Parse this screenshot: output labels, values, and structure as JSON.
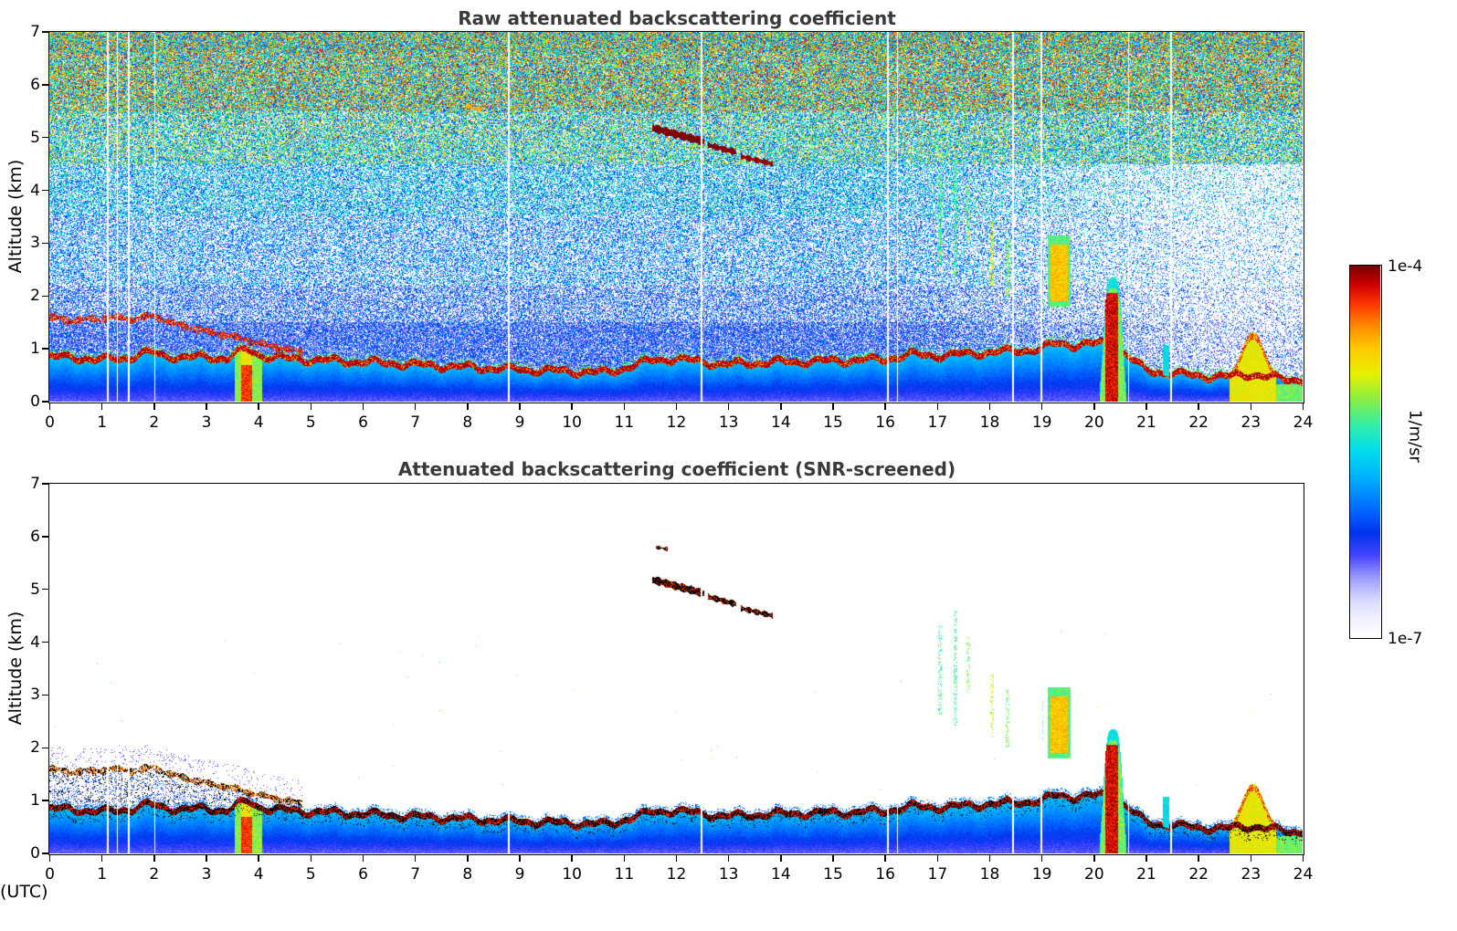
{
  "figure": {
    "background": "#ffffff"
  },
  "chart_data": {
    "type": "heatmap",
    "value_scale": "log",
    "panels": [
      {
        "id": "raw",
        "title": "Raw attenuated backscattering coefficient",
        "noise": true,
        "seed": 42
      },
      {
        "id": "screened",
        "title": "Attenuated backscattering coefficient (SNR-screened)",
        "noise": false,
        "seed": 1337
      }
    ],
    "shared": {
      "xlabel": "Time (UTC)",
      "ylabel": "Altitude (km)",
      "xlim": [
        0,
        24
      ],
      "ylim": [
        0,
        7
      ],
      "x_ticks": [
        0,
        1,
        2,
        3,
        4,
        5,
        6,
        7,
        8,
        9,
        10,
        11,
        12,
        13,
        14,
        15,
        16,
        17,
        18,
        19,
        20,
        21,
        22,
        23,
        24
      ],
      "y_ticks": [
        0,
        1,
        2,
        3,
        4,
        5,
        6,
        7
      ],
      "colorbar": {
        "max_label": "1e-4",
        "min_label": "1e-7",
        "units": "1/m/sr"
      },
      "colormap": [
        [
          0.0,
          "#ffffff"
        ],
        [
          0.05,
          "#f0f0ff"
        ],
        [
          0.1,
          "#d8d8ff"
        ],
        [
          0.16,
          "#9a9aff"
        ],
        [
          0.22,
          "#4444ff"
        ],
        [
          0.28,
          "#0033ee"
        ],
        [
          0.34,
          "#0066ff"
        ],
        [
          0.42,
          "#00aaff"
        ],
        [
          0.5,
          "#00ddee"
        ],
        [
          0.57,
          "#33eeaa"
        ],
        [
          0.64,
          "#88ee44"
        ],
        [
          0.71,
          "#e8f000"
        ],
        [
          0.78,
          "#ffc800"
        ],
        [
          0.84,
          "#ff8800"
        ],
        [
          0.9,
          "#ff3300"
        ],
        [
          0.95,
          "#cc0000"
        ],
        [
          1.0,
          "#780000"
        ]
      ],
      "features": {
        "boundary_layer_top_km": [
          [
            0,
            0.88
          ],
          [
            0.5,
            0.86
          ],
          [
            1,
            0.82
          ],
          [
            1.5,
            0.86
          ],
          [
            1.9,
            0.96
          ],
          [
            2.2,
            0.9
          ],
          [
            2.6,
            0.86
          ],
          [
            3.0,
            0.88
          ],
          [
            3.4,
            0.84
          ],
          [
            3.6,
            0.95
          ],
          [
            3.8,
            1.02
          ],
          [
            4.0,
            0.92
          ],
          [
            4.3,
            0.86
          ],
          [
            5,
            0.82
          ],
          [
            6,
            0.78
          ],
          [
            7,
            0.73
          ],
          [
            8,
            0.68
          ],
          [
            9,
            0.64
          ],
          [
            10,
            0.6
          ],
          [
            10.7,
            0.58
          ],
          [
            11.2,
            0.72
          ],
          [
            11.6,
            0.82
          ],
          [
            12,
            0.84
          ],
          [
            12.5,
            0.78
          ],
          [
            13,
            0.73
          ],
          [
            13.5,
            0.76
          ],
          [
            14,
            0.78
          ],
          [
            15,
            0.8
          ],
          [
            16,
            0.83
          ],
          [
            16.5,
            0.92
          ],
          [
            17,
            0.9
          ],
          [
            17.5,
            0.93
          ],
          [
            18,
            0.96
          ],
          [
            18.5,
            0.99
          ],
          [
            19,
            1.03
          ],
          [
            19.3,
            1.14
          ],
          [
            19.6,
            1.1
          ],
          [
            20,
            1.12
          ],
          [
            20.35,
            1.15
          ],
          [
            20.7,
            0.85
          ],
          [
            21,
            0.62
          ],
          [
            21.5,
            0.56
          ],
          [
            22,
            0.52
          ],
          [
            22.5,
            0.5
          ],
          [
            23,
            0.55
          ],
          [
            23.3,
            0.5
          ],
          [
            23.6,
            0.46
          ],
          [
            24,
            0.44
          ]
        ],
        "elevated_aerosol_layer_km": [
          [
            0,
            1.6
          ],
          [
            0.4,
            1.53
          ],
          [
            0.8,
            1.56
          ],
          [
            1.2,
            1.6
          ],
          [
            1.6,
            1.56
          ],
          [
            2.0,
            1.63
          ],
          [
            2.3,
            1.5
          ],
          [
            2.6,
            1.43
          ],
          [
            3.0,
            1.33
          ],
          [
            3.4,
            1.26
          ],
          [
            3.8,
            1.16
          ],
          [
            4.2,
            1.06
          ],
          [
            4.6,
            0.99
          ],
          [
            4.85,
            0.93
          ]
        ],
        "cloud_streaks": [
          {
            "t0": 11.55,
            "t1": 12.55,
            "z0": 5.18,
            "z1": 4.92,
            "th": 0.14,
            "v": 0.98
          },
          {
            "t0": 12.62,
            "t1": 13.15,
            "z0": 4.86,
            "z1": 4.72,
            "th": 0.1,
            "v": 0.97
          },
          {
            "t0": 13.25,
            "t1": 13.85,
            "z0": 4.64,
            "z1": 4.5,
            "th": 0.09,
            "v": 0.96
          },
          {
            "t0": 8.0,
            "t1": 8.3,
            "z0": 5.6,
            "z1": 5.52,
            "th": 0.06,
            "v": 0.78,
            "panel": "raw"
          },
          {
            "t0": 11.62,
            "t1": 11.85,
            "z0": 5.8,
            "z1": 5.76,
            "th": 0.05,
            "v": 0.92,
            "panel": "screened"
          }
        ],
        "precip_plume": {
          "t0": 3.55,
          "t1": 4.08,
          "t_core": 3.78,
          "v_core": 0.85,
          "v_edge": 0.58
        },
        "virga_columns": [
          {
            "t": 17.05,
            "z0": 2.6,
            "z1": 4.3,
            "w": 0.07,
            "v": 0.5
          },
          {
            "t": 17.35,
            "z0": 2.4,
            "z1": 4.6,
            "w": 0.06,
            "v": 0.5
          },
          {
            "t": 17.6,
            "z0": 3.0,
            "z1": 4.1,
            "w": 0.08,
            "v": 0.55
          },
          {
            "t": 18.05,
            "z0": 2.2,
            "z1": 3.4,
            "w": 0.07,
            "v": 0.62
          },
          {
            "t": 18.35,
            "z0": 2.0,
            "z1": 3.1,
            "w": 0.06,
            "v": 0.55
          },
          {
            "t": 19.0,
            "z0": 1.9,
            "z1": 2.9,
            "w": 0.05,
            "v": 0.5
          }
        ],
        "midlevel_blob": {
          "t0": 19.12,
          "t1": 19.55,
          "zbase": 1.8,
          "ztop": 3.15,
          "v": 0.75
        },
        "cloud_column": {
          "t0": 20.12,
          "t1": 20.62,
          "ztop": 2.35,
          "core_ztop": 2.05,
          "v_core": 0.88,
          "v_edge": 0.48
        },
        "narrow_column": {
          "t": 21.38,
          "w": 0.12,
          "ztop": 1.08,
          "v": 0.45
        },
        "low_blob": {
          "t0": 22.6,
          "t1": 23.5,
          "tpeak": 23.05,
          "ztop": 1.32,
          "v": 0.7
        },
        "surface_warm_patch": {
          "t0": 23.3,
          "t1": 24,
          "ztop": 0.32,
          "v": 0.62
        },
        "data_gap_times_utc": [
          1.12,
          1.3,
          1.52,
          2.02,
          8.8,
          12.49,
          16.06,
          16.24,
          18.45,
          19.0,
          20.67,
          21.48
        ]
      }
    }
  }
}
